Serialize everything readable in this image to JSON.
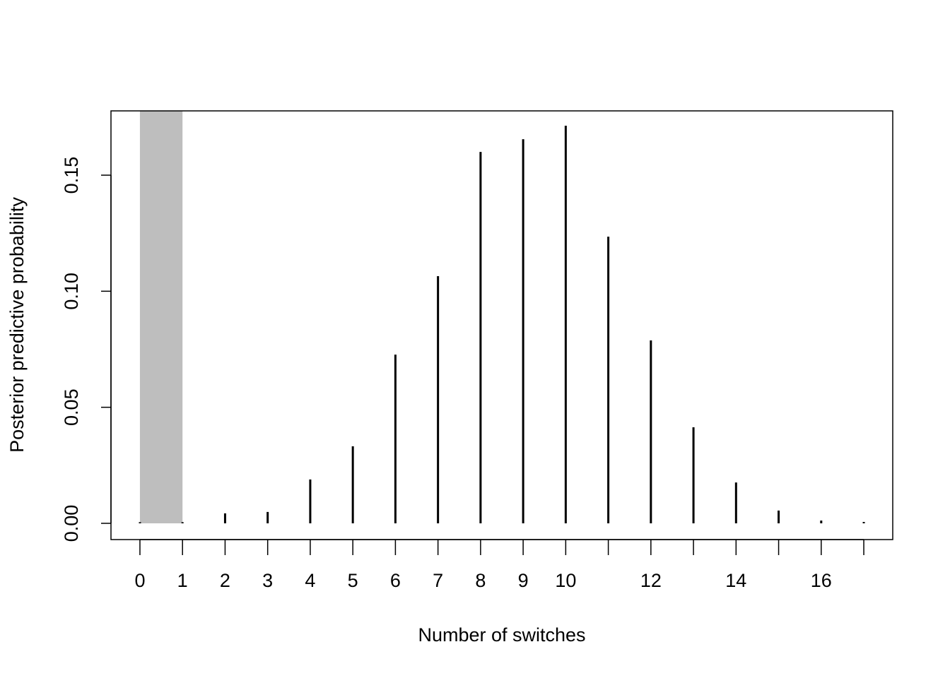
{
  "chart_data": {
    "type": "spike",
    "x_label": "Number of switches",
    "y_label": "Posterior predictive probability",
    "x": [
      0,
      1,
      2,
      3,
      4,
      5,
      6,
      7,
      8,
      9,
      10,
      11,
      12,
      13,
      14,
      15,
      16,
      17
    ],
    "values": [
      0.0005,
      0.0005,
      0.0043,
      0.0049,
      0.0189,
      0.0332,
      0.0727,
      0.1065,
      0.16,
      0.1655,
      0.1713,
      0.1235,
      0.0788,
      0.0414,
      0.0176,
      0.0055,
      0.0012,
      0.0006
    ],
    "color": "#000000",
    "highlight_x": [
      0,
      1
    ],
    "highlight_color": "#bebebe",
    "xlim": [
      -0.68,
      17.68
    ],
    "ylim": [
      -0.007,
      0.1777
    ],
    "xticks": [
      0,
      1,
      2,
      3,
      4,
      5,
      6,
      7,
      8,
      9,
      10,
      {
        "value": 11,
        "label": null
      },
      12,
      {
        "value": 13,
        "label": null
      },
      14,
      {
        "value": 15,
        "label": null
      },
      16,
      {
        "value": 17,
        "label": null
      }
    ],
    "yticks": [
      {
        "value": 0,
        "label": "0.00"
      },
      {
        "value": 0.05,
        "label": "0.05"
      },
      {
        "value": 0.1,
        "label": "0.10"
      },
      {
        "value": 0.15,
        "label": "0.15"
      }
    ]
  }
}
